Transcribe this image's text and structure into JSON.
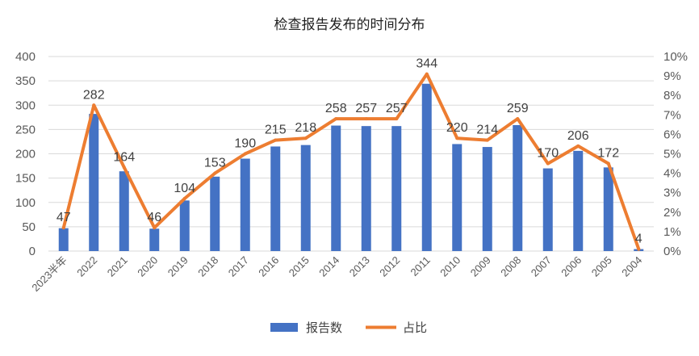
{
  "chart_data": {
    "type": "bar",
    "title": "检查报告发布的时间分布",
    "categories": [
      "2023半年",
      "2022",
      "2021",
      "2020",
      "2019",
      "2018",
      "2017",
      "2016",
      "2015",
      "2014",
      "2013",
      "2012",
      "2011",
      "2010",
      "2009",
      "2008",
      "2007",
      "2006",
      "2005",
      "2004"
    ],
    "series": [
      {
        "name": "报告数",
        "type": "bar",
        "axis": "left",
        "color": "#4472C4",
        "values": [
          47,
          282,
          164,
          46,
          104,
          153,
          190,
          215,
          218,
          258,
          257,
          257,
          344,
          220,
          214,
          259,
          170,
          206,
          172,
          4
        ]
      },
      {
        "name": "占比",
        "type": "line",
        "axis": "right",
        "color": "#ED7D31",
        "values": [
          1.2,
          7.5,
          4.3,
          1.2,
          2.7,
          4.0,
          5.0,
          5.7,
          5.8,
          6.8,
          6.8,
          6.8,
          9.1,
          5.8,
          5.7,
          6.8,
          4.5,
          5.4,
          4.5,
          0.1
        ]
      }
    ],
    "y_left": {
      "min": 0,
      "max": 400,
      "step": 50,
      "ticks": [
        "0",
        "50",
        "100",
        "150",
        "200",
        "250",
        "300",
        "350",
        "400"
      ]
    },
    "y_right": {
      "min": 0,
      "max": 10,
      "step": 1,
      "unit": "%",
      "ticks": [
        "0%",
        "1%",
        "2%",
        "3%",
        "4%",
        "5%",
        "6%",
        "7%",
        "8%",
        "9%",
        "10%"
      ]
    },
    "grid": true,
    "legend_position": "bottom",
    "data_labels": "bar values"
  }
}
